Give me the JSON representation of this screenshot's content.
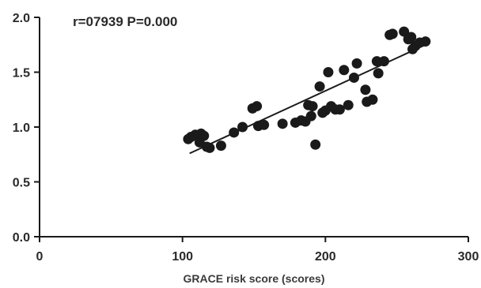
{
  "chart_data": {
    "type": "scatter",
    "title": "",
    "xlabel": "GRACE risk score (scores)",
    "ylabel": "",
    "annotation": "r=07939  P=0.000",
    "xlim": [
      0,
      300
    ],
    "ylim": [
      0,
      2.0
    ],
    "xticks": [
      "0",
      "100",
      "200",
      "300"
    ],
    "yticks": [
      "0.0",
      "0.5",
      "1.0",
      "1.5",
      "2.0"
    ],
    "grid": false,
    "legend": "none",
    "point_color": "#1a1a1a",
    "line_color": "#1a1a1a",
    "trendline": {
      "x": [
        105,
        270
      ],
      "y": [
        0.76,
        1.75
      ]
    },
    "points": [
      {
        "x": 104,
        "y": 0.89
      },
      {
        "x": 106,
        "y": 0.91
      },
      {
        "x": 109,
        "y": 0.93
      },
      {
        "x": 113,
        "y": 0.94
      },
      {
        "x": 115,
        "y": 0.92
      },
      {
        "x": 117,
        "y": 0.82
      },
      {
        "x": 119,
        "y": 0.81
      },
      {
        "x": 112,
        "y": 0.86
      },
      {
        "x": 127,
        "y": 0.83
      },
      {
        "x": 136,
        "y": 0.95
      },
      {
        "x": 142,
        "y": 1.0
      },
      {
        "x": 149,
        "y": 1.17
      },
      {
        "x": 152,
        "y": 1.19
      },
      {
        "x": 153,
        "y": 1.01
      },
      {
        "x": 157,
        "y": 1.02
      },
      {
        "x": 170,
        "y": 1.03
      },
      {
        "x": 179,
        "y": 1.04
      },
      {
        "x": 183,
        "y": 1.06
      },
      {
        "x": 186,
        "y": 1.05
      },
      {
        "x": 188,
        "y": 1.2
      },
      {
        "x": 190,
        "y": 1.1
      },
      {
        "x": 191,
        "y": 1.19
      },
      {
        "x": 193,
        "y": 0.84
      },
      {
        "x": 196,
        "y": 1.37
      },
      {
        "x": 198,
        "y": 1.13
      },
      {
        "x": 200,
        "y": 1.15
      },
      {
        "x": 202,
        "y": 1.5
      },
      {
        "x": 204,
        "y": 1.19
      },
      {
        "x": 207,
        "y": 1.16
      },
      {
        "x": 210,
        "y": 1.16
      },
      {
        "x": 213,
        "y": 1.52
      },
      {
        "x": 216,
        "y": 1.2
      },
      {
        "x": 220,
        "y": 1.45
      },
      {
        "x": 222,
        "y": 1.58
      },
      {
        "x": 228,
        "y": 1.34
      },
      {
        "x": 229,
        "y": 1.23
      },
      {
        "x": 233,
        "y": 1.25
      },
      {
        "x": 236,
        "y": 1.6
      },
      {
        "x": 237,
        "y": 1.49
      },
      {
        "x": 241,
        "y": 1.6
      },
      {
        "x": 245,
        "y": 1.84
      },
      {
        "x": 247,
        "y": 1.85
      },
      {
        "x": 255,
        "y": 1.87
      },
      {
        "x": 258,
        "y": 1.8
      },
      {
        "x": 260,
        "y": 1.82
      },
      {
        "x": 261,
        "y": 1.71
      },
      {
        "x": 263,
        "y": 1.74
      },
      {
        "x": 266,
        "y": 1.77
      },
      {
        "x": 270,
        "y": 1.78
      }
    ]
  }
}
